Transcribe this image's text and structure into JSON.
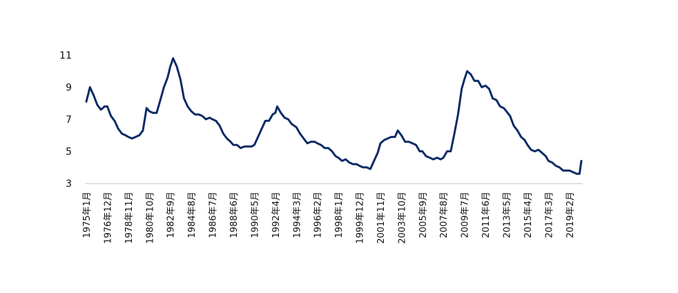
{
  "chart_data": {
    "type": "line",
    "xlabel": "",
    "ylabel": "",
    "ylim": [
      3,
      11
    ],
    "yticks": [
      3,
      5,
      7,
      9,
      11
    ],
    "grid": false,
    "legend": "none",
    "line_color": "#0b2a66",
    "x_tick_labels": [
      "1975年1月",
      "1976年12月",
      "1978年11月",
      "1980年10月",
      "1982年9月",
      "1984年8月",
      "1986年7月",
      "1988年6月",
      "1990年5月",
      "1992年4月",
      "1994年3月",
      "1996年2月",
      "1998年1月",
      "1999年12月",
      "2001年11月",
      "2003年10月",
      "2005年9月",
      "2007年8月",
      "2009年7月",
      "2011年6月",
      "2013年5月",
      "2015年4月",
      "2017年3月",
      "2019年2月"
    ],
    "series": [
      {
        "points": [
          [
            "1975-01",
            8.1
          ],
          [
            "1975-05",
            9.0
          ],
          [
            "1975-09",
            8.5
          ],
          [
            "1976-01",
            7.9
          ],
          [
            "1976-05",
            7.6
          ],
          [
            "1976-09",
            7.8
          ],
          [
            "1976-12",
            7.8
          ],
          [
            "1977-04",
            7.2
          ],
          [
            "1977-08",
            6.9
          ],
          [
            "1977-12",
            6.4
          ],
          [
            "1978-04",
            6.1
          ],
          [
            "1978-08",
            6.0
          ],
          [
            "1978-11",
            5.9
          ],
          [
            "1979-03",
            5.8
          ],
          [
            "1979-07",
            5.9
          ],
          [
            "1979-11",
            6.0
          ],
          [
            "1980-03",
            6.3
          ],
          [
            "1980-07",
            7.7
          ],
          [
            "1980-10",
            7.5
          ],
          [
            "1981-02",
            7.4
          ],
          [
            "1981-06",
            7.4
          ],
          [
            "1981-10",
            8.2
          ],
          [
            "1982-02",
            9.0
          ],
          [
            "1982-06",
            9.6
          ],
          [
            "1982-09",
            10.3
          ],
          [
            "1982-12",
            10.8
          ],
          [
            "1983-04",
            10.3
          ],
          [
            "1983-08",
            9.5
          ],
          [
            "1983-12",
            8.3
          ],
          [
            "1984-04",
            7.8
          ],
          [
            "1984-08",
            7.5
          ],
          [
            "1984-12",
            7.3
          ],
          [
            "1985-04",
            7.3
          ],
          [
            "1985-08",
            7.2
          ],
          [
            "1985-12",
            7.0
          ],
          [
            "1986-04",
            7.1
          ],
          [
            "1986-07",
            7.0
          ],
          [
            "1986-11",
            6.9
          ],
          [
            "1987-03",
            6.6
          ],
          [
            "1987-07",
            6.1
          ],
          [
            "1987-11",
            5.8
          ],
          [
            "1988-03",
            5.6
          ],
          [
            "1988-06",
            5.4
          ],
          [
            "1988-10",
            5.4
          ],
          [
            "1989-02",
            5.2
          ],
          [
            "1989-06",
            5.3
          ],
          [
            "1989-10",
            5.3
          ],
          [
            "1990-02",
            5.3
          ],
          [
            "1990-05",
            5.4
          ],
          [
            "1990-09",
            5.9
          ],
          [
            "1991-01",
            6.4
          ],
          [
            "1991-05",
            6.9
          ],
          [
            "1991-09",
            6.9
          ],
          [
            "1992-01",
            7.3
          ],
          [
            "1992-04",
            7.4
          ],
          [
            "1992-06",
            7.8
          ],
          [
            "1992-10",
            7.4
          ],
          [
            "1993-02",
            7.1
          ],
          [
            "1993-06",
            7.0
          ],
          [
            "1993-10",
            6.7
          ],
          [
            "1994-03",
            6.5
          ],
          [
            "1994-07",
            6.1
          ],
          [
            "1994-11",
            5.8
          ],
          [
            "1995-03",
            5.5
          ],
          [
            "1995-07",
            5.6
          ],
          [
            "1995-11",
            5.6
          ],
          [
            "1996-02",
            5.5
          ],
          [
            "1996-06",
            5.4
          ],
          [
            "1996-10",
            5.2
          ],
          [
            "1997-02",
            5.2
          ],
          [
            "1997-06",
            5.0
          ],
          [
            "1997-10",
            4.7
          ],
          [
            "1998-01",
            4.6
          ],
          [
            "1998-05",
            4.4
          ],
          [
            "1998-09",
            4.5
          ],
          [
            "1999-01",
            4.3
          ],
          [
            "1999-05",
            4.2
          ],
          [
            "1999-09",
            4.2
          ],
          [
            "1999-12",
            4.1
          ],
          [
            "2000-04",
            4.0
          ],
          [
            "2000-08",
            4.0
          ],
          [
            "2000-12",
            3.9
          ],
          [
            "2001-04",
            4.4
          ],
          [
            "2001-08",
            4.9
          ],
          [
            "2001-11",
            5.5
          ],
          [
            "2002-03",
            5.7
          ],
          [
            "2002-07",
            5.8
          ],
          [
            "2002-11",
            5.9
          ],
          [
            "2003-03",
            5.9
          ],
          [
            "2003-06",
            6.3
          ],
          [
            "2003-10",
            6.0
          ],
          [
            "2004-02",
            5.6
          ],
          [
            "2004-06",
            5.6
          ],
          [
            "2004-10",
            5.5
          ],
          [
            "2005-02",
            5.4
          ],
          [
            "2005-06",
            5.0
          ],
          [
            "2005-09",
            5.0
          ],
          [
            "2006-01",
            4.7
          ],
          [
            "2006-05",
            4.6
          ],
          [
            "2006-09",
            4.5
          ],
          [
            "2007-01",
            4.6
          ],
          [
            "2007-05",
            4.5
          ],
          [
            "2007-08",
            4.6
          ],
          [
            "2007-12",
            5.0
          ],
          [
            "2008-04",
            5.0
          ],
          [
            "2008-08",
            6.1
          ],
          [
            "2008-12",
            7.3
          ],
          [
            "2009-04",
            8.9
          ],
          [
            "2009-07",
            9.5
          ],
          [
            "2009-10",
            10.0
          ],
          [
            "2010-02",
            9.8
          ],
          [
            "2010-06",
            9.4
          ],
          [
            "2010-10",
            9.4
          ],
          [
            "2011-02",
            9.0
          ],
          [
            "2011-06",
            9.1
          ],
          [
            "2011-10",
            8.9
          ],
          [
            "2012-02",
            8.3
          ],
          [
            "2012-06",
            8.2
          ],
          [
            "2012-10",
            7.8
          ],
          [
            "2013-02",
            7.7
          ],
          [
            "2013-05",
            7.5
          ],
          [
            "2013-09",
            7.2
          ],
          [
            "2014-01",
            6.6
          ],
          [
            "2014-05",
            6.3
          ],
          [
            "2014-09",
            5.9
          ],
          [
            "2015-01",
            5.7
          ],
          [
            "2015-04",
            5.4
          ],
          [
            "2015-08",
            5.1
          ],
          [
            "2015-12",
            5.0
          ],
          [
            "2016-04",
            5.1
          ],
          [
            "2016-08",
            4.9
          ],
          [
            "2016-12",
            4.7
          ],
          [
            "2017-03",
            4.4
          ],
          [
            "2017-07",
            4.3
          ],
          [
            "2017-11",
            4.1
          ],
          [
            "2018-03",
            4.0
          ],
          [
            "2018-07",
            3.8
          ],
          [
            "2018-11",
            3.8
          ],
          [
            "2019-02",
            3.8
          ],
          [
            "2019-06",
            3.7
          ],
          [
            "2019-10",
            3.6
          ],
          [
            "2020-01",
            3.6
          ],
          [
            "2020-03",
            4.4
          ]
        ]
      }
    ]
  }
}
